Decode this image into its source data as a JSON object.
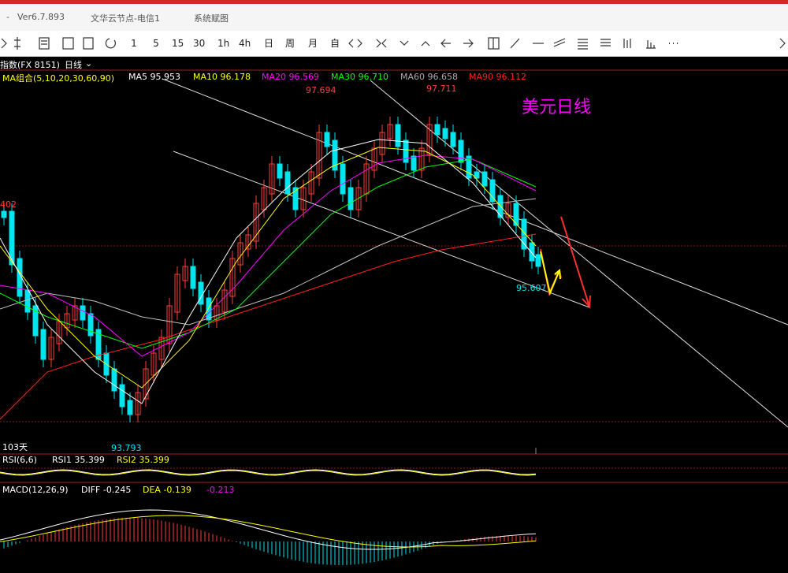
{
  "titlebar": {
    "dash": "-",
    "version": "Ver6.7.893",
    "node": "文华云节点-电信1",
    "system": "系统赋图"
  },
  "toolbar": {
    "items": [
      "1",
      "5",
      "15",
      "30",
      "1h",
      "4h",
      "日",
      "周",
      "月",
      "自"
    ]
  },
  "header": {
    "instrument": "指数(FX 8151)",
    "period": "日线",
    "period_arrow": "⌄"
  },
  "ma_bar": {
    "group_label": "MA组合(5,10,20,30,60,90)",
    "ma5": "MA5 95.953",
    "ma10": "MA10 96.178",
    "ma20": "MA20 96.569",
    "ma30": "MA30 96.710",
    "ma60": "MA60 96.658",
    "ma90": "MA90 96.112"
  },
  "price_labels": {
    "high1": "97.694",
    "high2": "97.711",
    "left_price": "402",
    "low_recent": "95.607",
    "low_bottom": "93.793",
    "days": "103天"
  },
  "annotation": "美元日线",
  "rsi_bar": {
    "label": "RSI(6,6)",
    "rsi1": "RSI1 35.399",
    "rsi2": "RSI2 35.399"
  },
  "macd_bar": {
    "label": "MACD(12,26,9)",
    "diff": "DIFF -0.245",
    "dea": "DEA -0.139",
    "macd": "-0.213"
  },
  "colors": {
    "up_candle": "#ff3c3c",
    "down_candle": "#00e5ee",
    "ma5": "#ffffff",
    "ma10": "#ffff00",
    "ma20": "#ff00ff",
    "ma30": "#00ff00",
    "ma60": "#c0c0c0",
    "ma90": "#ff2020",
    "annotation": "#ff00ff"
  }
}
